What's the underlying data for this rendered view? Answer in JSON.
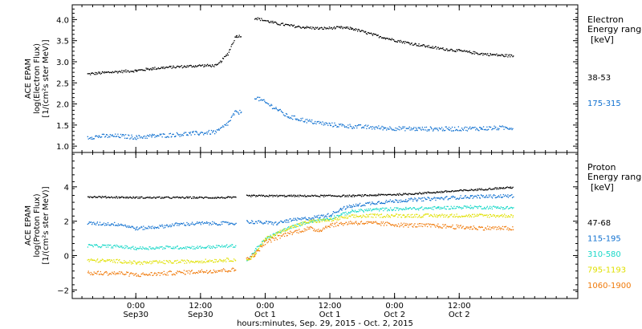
{
  "chart_data": [
    {
      "type": "scatter",
      "panel": "electron",
      "ylabel_lines": [
        "ACE EPAM",
        "log(Electron Flux)",
        "[1/(cm²s ster MeV)]"
      ],
      "legend_title_lines": [
        "Electron",
        "Energy ranges"
      ],
      "legend_unit": "[keV]",
      "ylim": [
        0.85,
        4.35
      ],
      "yticks": [
        1.0,
        1.5,
        2.0,
        2.5,
        3.0,
        3.5,
        4.0
      ],
      "ytick_labels": [
        "1.0",
        "1.5",
        "2.0",
        "2.5",
        "3.0",
        "3.5",
        "4.0"
      ],
      "series": [
        {
          "name": "38-53",
          "color": "#000000",
          "noise": 0.03,
          "points": [
            [
              -9,
              2.72
            ],
            [
              -6,
              2.75
            ],
            [
              -3,
              2.78
            ],
            [
              0,
              2.8
            ],
            [
              3,
              2.85
            ],
            [
              6,
              2.88
            ],
            [
              9,
              2.9
            ],
            [
              12,
              2.92
            ],
            [
              15,
              2.92
            ],
            [
              17,
              3.2
            ],
            [
              18.5,
              3.62
            ],
            [
              19.5,
              3.62
            ],
            [
              20,
              null
            ],
            [
              22,
              4.05
            ],
            [
              26,
              3.92
            ],
            [
              30,
              3.84
            ],
            [
              34,
              3.8
            ],
            [
              38,
              3.82
            ],
            [
              40,
              3.8
            ],
            [
              44,
              3.65
            ],
            [
              48,
              3.52
            ],
            [
              52,
              3.42
            ],
            [
              56,
              3.33
            ],
            [
              60,
              3.27
            ],
            [
              64,
              3.2
            ],
            [
              68,
              3.16
            ],
            [
              70,
              3.15
            ]
          ]
        },
        {
          "name": "175-315",
          "color": "#0f70d0",
          "noise": 0.05,
          "points": [
            [
              -9,
              1.22
            ],
            [
              -6,
              1.25
            ],
            [
              -3,
              1.25
            ],
            [
              0,
              1.22
            ],
            [
              3,
              1.25
            ],
            [
              6,
              1.27
            ],
            [
              9,
              1.3
            ],
            [
              12,
              1.32
            ],
            [
              15,
              1.35
            ],
            [
              17,
              1.55
            ],
            [
              18.3,
              1.8
            ],
            [
              19.5,
              1.82
            ],
            [
              20,
              null
            ],
            [
              22,
              2.18
            ],
            [
              26,
              1.9
            ],
            [
              28,
              1.72
            ],
            [
              32,
              1.6
            ],
            [
              36,
              1.52
            ],
            [
              40,
              1.48
            ],
            [
              46,
              1.44
            ],
            [
              52,
              1.42
            ],
            [
              58,
              1.42
            ],
            [
              64,
              1.43
            ],
            [
              70,
              1.45
            ]
          ]
        }
      ]
    },
    {
      "type": "scatter",
      "panel": "proton",
      "ylabel_lines": [
        "ACE EPAM",
        "log(Proton Flux)",
        "[1/(cm²s ster MeV)]"
      ],
      "legend_title_lines": [
        "Proton",
        "Energy ranges"
      ],
      "legend_unit": "[keV]",
      "ylim": [
        -2.5,
        6.0
      ],
      "yticks": [
        -2,
        0,
        2,
        4
      ],
      "ytick_labels": [
        "−2",
        "0",
        "2",
        "4"
      ],
      "series": [
        {
          "name": "47-68",
          "color": "#000000",
          "noise": 0.05,
          "points": [
            [
              -9,
              3.45
            ],
            [
              0,
              3.4
            ],
            [
              9,
              3.4
            ],
            [
              18.5,
              3.4
            ],
            [
              19,
              null
            ],
            [
              20.5,
              3.5
            ],
            [
              30,
              3.5
            ],
            [
              40,
              3.5
            ],
            [
              50,
              3.6
            ],
            [
              60,
              3.8
            ],
            [
              70,
              4.0
            ]
          ]
        },
        {
          "name": "115-195",
          "color": "#0f70d0",
          "noise": 0.1,
          "points": [
            [
              -9,
              1.9
            ],
            [
              -3,
              1.85
            ],
            [
              0,
              1.6
            ],
            [
              4,
              1.7
            ],
            [
              8,
              1.85
            ],
            [
              12,
              1.9
            ],
            [
              18.5,
              1.9
            ],
            [
              19,
              null
            ],
            [
              20.5,
              2.0
            ],
            [
              26,
              1.9
            ],
            [
              28,
              2.05
            ],
            [
              32,
              2.2
            ],
            [
              36,
              2.4
            ],
            [
              38,
              2.75
            ],
            [
              40,
              2.9
            ],
            [
              44,
              3.1
            ],
            [
              50,
              3.25
            ],
            [
              56,
              3.35
            ],
            [
              62,
              3.45
            ],
            [
              70,
              3.5
            ]
          ]
        },
        {
          "name": "310-580",
          "color": "#18d8c8",
          "noise": 0.09,
          "points": [
            [
              -9,
              0.6
            ],
            [
              -3,
              0.55
            ],
            [
              0,
              0.45
            ],
            [
              6,
              0.5
            ],
            [
              12,
              0.5
            ],
            [
              18.5,
              0.6
            ],
            [
              19,
              null
            ],
            [
              20.5,
              -0.3
            ],
            [
              22,
              0.3
            ],
            [
              24,
              1.0
            ],
            [
              28,
              1.6
            ],
            [
              32,
              2.0
            ],
            [
              36,
              2.2
            ],
            [
              38,
              2.4
            ],
            [
              40,
              2.6
            ],
            [
              44,
              2.7
            ],
            [
              50,
              2.75
            ],
            [
              56,
              2.8
            ],
            [
              62,
              2.85
            ],
            [
              70,
              2.8
            ]
          ]
        },
        {
          "name": "795-1193",
          "color": "#e0e000",
          "noise": 0.1,
          "points": [
            [
              -9,
              -0.25
            ],
            [
              -3,
              -0.3
            ],
            [
              0,
              -0.4
            ],
            [
              6,
              -0.35
            ],
            [
              12,
              -0.3
            ],
            [
              18.5,
              -0.2
            ],
            [
              19,
              null
            ],
            [
              20.5,
              -0.3
            ],
            [
              22,
              0.1
            ],
            [
              24,
              1.0
            ],
            [
              28,
              1.6
            ],
            [
              32,
              2.0
            ],
            [
              36,
              2.1
            ],
            [
              40,
              2.3
            ],
            [
              44,
              2.35
            ],
            [
              50,
              2.35
            ],
            [
              56,
              2.35
            ],
            [
              62,
              2.35
            ],
            [
              70,
              2.35
            ]
          ]
        },
        {
          "name": "1060-1900",
          "color": "#f07a0a",
          "noise": 0.12,
          "points": [
            [
              -9,
              -1.0
            ],
            [
              -3,
              -1.0
            ],
            [
              0,
              -1.1
            ],
            [
              6,
              -1.0
            ],
            [
              12,
              -0.9
            ],
            [
              18.5,
              -0.8
            ],
            [
              19,
              null
            ],
            [
              20.5,
              -0.15
            ],
            [
              22,
              0.1
            ],
            [
              24,
              0.8
            ],
            [
              28,
              1.3
            ],
            [
              32,
              1.6
            ],
            [
              34,
              1.5
            ],
            [
              36,
              1.8
            ],
            [
              40,
              1.95
            ],
            [
              44,
              1.9
            ],
            [
              50,
              1.8
            ],
            [
              56,
              1.75
            ],
            [
              62,
              1.65
            ],
            [
              70,
              1.6
            ]
          ]
        }
      ]
    }
  ],
  "x_axis": {
    "xlim": [
      -11.8,
      82
    ],
    "ticks": [
      {
        "hours": 0,
        "line1": "0:00",
        "line2": "Sep30"
      },
      {
        "hours": 12,
        "line1": "12:00",
        "line2": "Sep30"
      },
      {
        "hours": 24,
        "line1": "0:00",
        "line2": "Oct 1"
      },
      {
        "hours": 36,
        "line1": "12:00",
        "line2": "Oct 1"
      },
      {
        "hours": 48,
        "line1": "0:00",
        "line2": "Oct 2"
      },
      {
        "hours": 60,
        "line1": "12:00",
        "line2": "Oct 2"
      }
    ],
    "minor_step_hours": 2,
    "label": "hours:minutes, Sep. 29, 2015 - Oct. 2, 2015"
  },
  "colors": {
    "axis": "#000000",
    "background": "#ffffff"
  }
}
